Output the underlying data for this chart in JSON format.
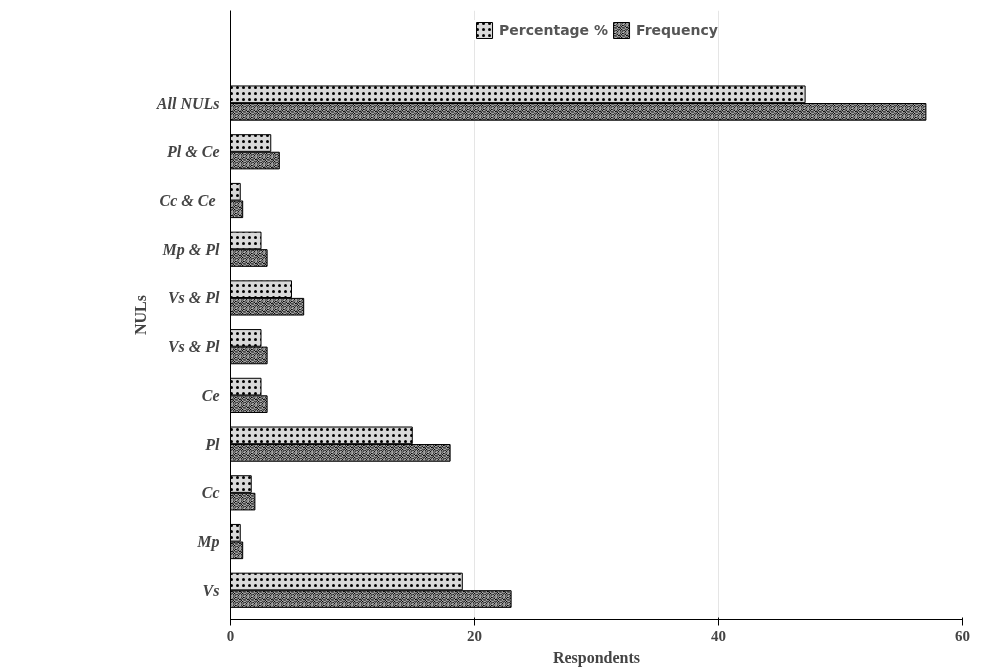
{
  "chart_data": {
    "type": "bar",
    "orientation": "horizontal",
    "xlabel": "Respondents",
    "ylabel": "NULs",
    "categories": [
      "All NULs",
      "Pl & Ce",
      "Cc  & Ce",
      "Mp & Pl",
      "Vs & Pl",
      "Vs & Pl",
      "Ce",
      "Pl",
      "Cc",
      "Mp",
      "Vs"
    ],
    "series": [
      {
        "name": "Percentage %",
        "color": "#d9d9d9",
        "values": [
          47.1,
          3.3,
          0.8,
          2.5,
          5.0,
          2.5,
          2.5,
          14.9,
          1.7,
          0.8,
          19.0
        ]
      },
      {
        "name": "Frequency",
        "color": "#000000",
        "values": [
          57,
          4,
          1,
          3,
          6,
          3,
          3,
          18,
          2,
          1,
          23
        ]
      }
    ],
    "xlim": [
      0,
      60
    ],
    "xticks": [
      0,
      20,
      40,
      60
    ],
    "grid": "x",
    "legend": "top"
  }
}
